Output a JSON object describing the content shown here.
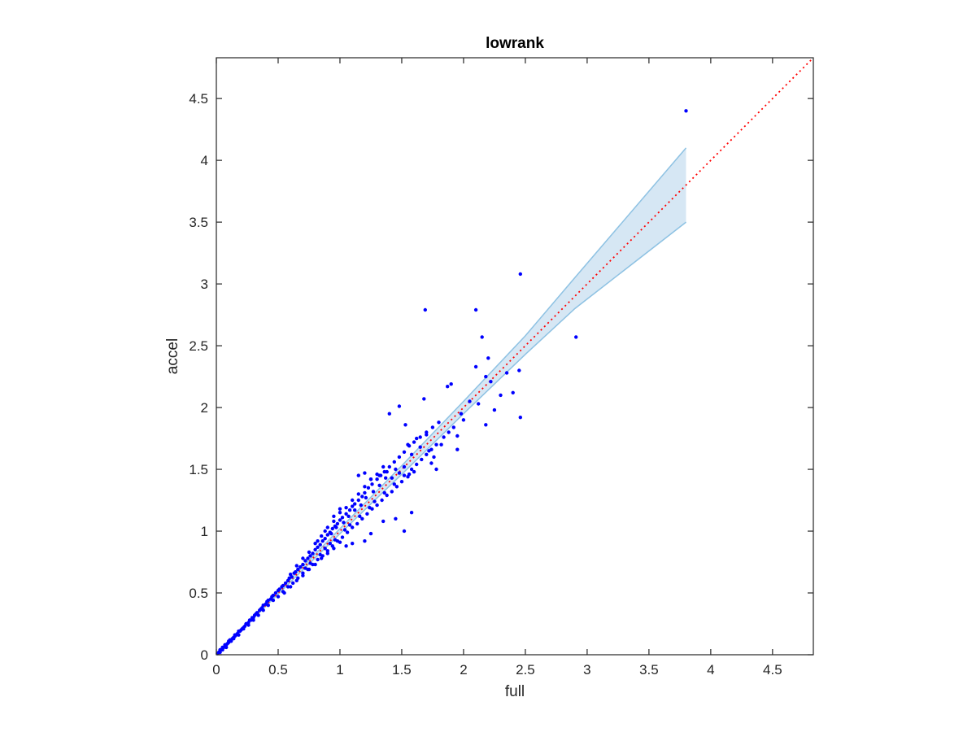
{
  "chart_data": {
    "type": "scatter",
    "title": "lowrank",
    "xlabel": "full",
    "ylabel": "accel",
    "xlim": [
      0,
      4.83
    ],
    "ylim": [
      0,
      4.83
    ],
    "xticks": [
      0,
      0.5,
      1,
      1.5,
      2,
      2.5,
      3,
      3.5,
      4,
      4.5
    ],
    "xtick_labels": [
      "0",
      "0.5",
      "1",
      "1.5",
      "2",
      "2.5",
      "3",
      "3.5",
      "4",
      "4.5"
    ],
    "yticks": [
      0,
      0.5,
      1,
      1.5,
      2,
      2.5,
      3,
      3.5,
      4,
      4.5
    ],
    "ytick_labels": [
      "0",
      "0.5",
      "1",
      "1.5",
      "2",
      "2.5",
      "3",
      "3.5",
      "4",
      "4.5"
    ],
    "grid": false,
    "colors": {
      "points": "#0000ff",
      "reference_line": "#ff0000",
      "band_fill": "#cfe3f2",
      "band_edge": "#8ec2e3",
      "axes": "#262626"
    },
    "reference_line": {
      "x": [
        0,
        4.83
      ],
      "y": [
        0,
        4.83
      ],
      "style": "dotted"
    },
    "confidence_band": {
      "x": [
        0.0,
        0.5,
        1.0,
        1.5,
        2.0,
        2.5,
        2.9,
        3.8
      ],
      "upper": [
        0.01,
        0.51,
        1.02,
        1.53,
        2.05,
        2.58,
        3.05,
        4.1
      ],
      "lower": [
        0.0,
        0.49,
        0.98,
        1.46,
        1.95,
        2.43,
        2.8,
        3.5
      ]
    },
    "points": [
      [
        0.01,
        0.01
      ],
      [
        0.02,
        0.02
      ],
      [
        0.03,
        0.02
      ],
      [
        0.03,
        0.04
      ],
      [
        0.04,
        0.04
      ],
      [
        0.05,
        0.05
      ],
      [
        0.05,
        0.06
      ],
      [
        0.06,
        0.06
      ],
      [
        0.07,
        0.07
      ],
      [
        0.07,
        0.08
      ],
      [
        0.08,
        0.08
      ],
      [
        0.09,
        0.09
      ],
      [
        0.1,
        0.1
      ],
      [
        0.1,
        0.11
      ],
      [
        0.11,
        0.12
      ],
      [
        0.12,
        0.12
      ],
      [
        0.13,
        0.13
      ],
      [
        0.14,
        0.14
      ],
      [
        0.15,
        0.15
      ],
      [
        0.15,
        0.16
      ],
      [
        0.16,
        0.16
      ],
      [
        0.17,
        0.17
      ],
      [
        0.18,
        0.19
      ],
      [
        0.19,
        0.19
      ],
      [
        0.2,
        0.2
      ],
      [
        0.21,
        0.21
      ],
      [
        0.22,
        0.22
      ],
      [
        0.23,
        0.23
      ],
      [
        0.24,
        0.25
      ],
      [
        0.25,
        0.25
      ],
      [
        0.26,
        0.26
      ],
      [
        0.27,
        0.28
      ],
      [
        0.28,
        0.28
      ],
      [
        0.29,
        0.3
      ],
      [
        0.3,
        0.3
      ],
      [
        0.31,
        0.32
      ],
      [
        0.32,
        0.33
      ],
      [
        0.33,
        0.34
      ],
      [
        0.35,
        0.36
      ],
      [
        0.36,
        0.37
      ],
      [
        0.37,
        0.38
      ],
      [
        0.38,
        0.4
      ],
      [
        0.4,
        0.41
      ],
      [
        0.41,
        0.43
      ],
      [
        0.42,
        0.44
      ],
      [
        0.44,
        0.45
      ],
      [
        0.45,
        0.47
      ],
      [
        0.46,
        0.48
      ],
      [
        0.48,
        0.5
      ],
      [
        0.5,
        0.52
      ],
      [
        0.51,
        0.53
      ],
      [
        0.53,
        0.55
      ],
      [
        0.54,
        0.56
      ],
      [
        0.56,
        0.58
      ],
      [
        0.58,
        0.6
      ],
      [
        0.59,
        0.62
      ],
      [
        0.61,
        0.63
      ],
      [
        0.63,
        0.66
      ],
      [
        0.64,
        0.67
      ],
      [
        0.66,
        0.69
      ],
      [
        0.68,
        0.71
      ],
      [
        0.7,
        0.73
      ],
      [
        0.72,
        0.76
      ],
      [
        0.74,
        0.78
      ],
      [
        0.76,
        0.8
      ],
      [
        0.78,
        0.82
      ],
      [
        0.8,
        0.85
      ],
      [
        0.82,
        0.87
      ],
      [
        0.84,
        0.89
      ],
      [
        0.86,
        0.92
      ],
      [
        0.88,
        0.94
      ],
      [
        0.9,
        0.97
      ],
      [
        0.92,
        0.99
      ],
      [
        0.94,
        1.02
      ],
      [
        0.96,
        1.04
      ],
      [
        0.98,
        1.06
      ],
      [
        1.0,
        1.09
      ],
      [
        1.02,
        1.11
      ],
      [
        1.05,
        1.14
      ],
      [
        1.08,
        1.17
      ],
      [
        1.1,
        1.2
      ],
      [
        1.12,
        1.22
      ],
      [
        1.15,
        1.25
      ],
      [
        1.18,
        1.28
      ],
      [
        1.2,
        1.31
      ],
      [
        1.23,
        1.35
      ],
      [
        1.26,
        1.38
      ],
      [
        1.3,
        1.42
      ],
      [
        1.33,
        1.45
      ],
      [
        1.36,
        1.48
      ],
      [
        1.4,
        1.52
      ],
      [
        1.44,
        1.56
      ],
      [
        1.48,
        1.6
      ],
      [
        1.52,
        1.64
      ],
      [
        1.56,
        1.69
      ],
      [
        1.6,
        1.72
      ],
      [
        1.65,
        1.76
      ],
      [
        1.7,
        1.8
      ],
      [
        1.75,
        1.84
      ],
      [
        1.8,
        1.88
      ],
      [
        0.05,
        0.04
      ],
      [
        0.08,
        0.06
      ],
      [
        0.12,
        0.11
      ],
      [
        0.14,
        0.13
      ],
      [
        0.18,
        0.16
      ],
      [
        0.22,
        0.21
      ],
      [
        0.26,
        0.24
      ],
      [
        0.3,
        0.28
      ],
      [
        0.34,
        0.32
      ],
      [
        0.38,
        0.36
      ],
      [
        0.42,
        0.4
      ],
      [
        0.46,
        0.44
      ],
      [
        0.5,
        0.47
      ],
      [
        0.54,
        0.51
      ],
      [
        0.58,
        0.55
      ],
      [
        0.62,
        0.58
      ],
      [
        0.66,
        0.62
      ],
      [
        0.7,
        0.66
      ],
      [
        0.74,
        0.69
      ],
      [
        0.78,
        0.73
      ],
      [
        0.82,
        0.77
      ],
      [
        0.86,
        0.8
      ],
      [
        0.9,
        0.84
      ],
      [
        0.94,
        0.88
      ],
      [
        0.98,
        0.92
      ],
      [
        1.02,
        0.95
      ],
      [
        1.06,
        0.99
      ],
      [
        1.1,
        1.03
      ],
      [
        1.14,
        1.06
      ],
      [
        1.18,
        1.1
      ],
      [
        1.22,
        1.14
      ],
      [
        1.26,
        1.18
      ],
      [
        1.3,
        1.21
      ],
      [
        1.34,
        1.25
      ],
      [
        1.38,
        1.29
      ],
      [
        1.42,
        1.32
      ],
      [
        1.46,
        1.36
      ],
      [
        1.5,
        1.4
      ],
      [
        1.55,
        1.44
      ],
      [
        1.6,
        1.48
      ],
      [
        0.6,
        0.65
      ],
      [
        0.65,
        0.72
      ],
      [
        0.7,
        0.78
      ],
      [
        0.75,
        0.83
      ],
      [
        0.8,
        0.9
      ],
      [
        0.85,
        0.96
      ],
      [
        0.9,
        1.03
      ],
      [
        0.95,
        1.08
      ],
      [
        1.0,
        1.15
      ],
      [
        1.05,
        1.19
      ],
      [
        1.1,
        1.25
      ],
      [
        1.15,
        1.3
      ],
      [
        1.2,
        1.36
      ],
      [
        1.25,
        1.42
      ],
      [
        1.3,
        1.46
      ],
      [
        1.35,
        1.52
      ],
      [
        0.82,
        0.92
      ],
      [
        0.88,
        1.0
      ],
      [
        0.95,
        1.12
      ],
      [
        1.0,
        1.18
      ],
      [
        0.93,
        0.98
      ],
      [
        0.97,
        1.03
      ],
      [
        1.03,
        1.07
      ],
      [
        1.07,
        1.12
      ],
      [
        1.12,
        1.17
      ],
      [
        1.17,
        1.21
      ],
      [
        1.21,
        1.27
      ],
      [
        1.27,
        1.32
      ],
      [
        1.32,
        1.37
      ],
      [
        1.37,
        1.43
      ],
      [
        0.72,
        0.7
      ],
      [
        0.76,
        0.74
      ],
      [
        0.84,
        0.81
      ],
      [
        0.88,
        0.86
      ],
      [
        0.92,
        0.9
      ],
      [
        0.96,
        0.93
      ],
      [
        1.04,
        1.01
      ],
      [
        1.08,
        1.05
      ],
      [
        1.16,
        1.12
      ],
      [
        1.24,
        1.19
      ],
      [
        1.28,
        1.24
      ],
      [
        1.36,
        1.31
      ],
      [
        1.44,
        1.38
      ],
      [
        1.52,
        1.45
      ],
      [
        1.58,
        1.5
      ],
      [
        1.62,
        1.54
      ],
      [
        1.66,
        1.58
      ],
      [
        1.7,
        1.62
      ],
      [
        1.74,
        1.66
      ],
      [
        1.78,
        1.7
      ],
      [
        1.15,
        1.45
      ],
      [
        1.2,
        1.47
      ],
      [
        1.25,
        1.42
      ],
      [
        1.32,
        1.45
      ],
      [
        1.38,
        1.48
      ],
      [
        1.42,
        1.43
      ],
      [
        1.45,
        1.5
      ],
      [
        1.48,
        1.47
      ],
      [
        1.52,
        1.52
      ],
      [
        1.56,
        1.46
      ],
      [
        1.4,
        1.95
      ],
      [
        1.48,
        2.01
      ],
      [
        1.53,
        1.86
      ],
      [
        1.55,
        1.7
      ],
      [
        1.58,
        1.62
      ],
      [
        1.62,
        1.75
      ],
      [
        1.65,
        1.68
      ],
      [
        1.68,
        2.07
      ],
      [
        1.7,
        1.78
      ],
      [
        1.72,
        1.65
      ],
      [
        1.74,
        1.55
      ],
      [
        1.76,
        1.6
      ],
      [
        1.78,
        1.5
      ],
      [
        1.82,
        1.7
      ],
      [
        1.87,
        2.17
      ],
      [
        1.9,
        2.19
      ],
      [
        1.95,
        1.77
      ],
      [
        1.95,
        1.66
      ],
      [
        2.0,
        1.9
      ],
      [
        2.05,
        2.05
      ],
      [
        2.1,
        2.33
      ],
      [
        2.15,
        2.57
      ],
      [
        2.18,
        2.25
      ],
      [
        2.2,
        2.4
      ],
      [
        2.25,
        1.98
      ],
      [
        2.3,
        2.1
      ],
      [
        2.35,
        2.28
      ],
      [
        2.4,
        2.12
      ],
      [
        2.45,
        2.3
      ],
      [
        2.46,
        1.92
      ],
      [
        2.18,
        1.86
      ],
      [
        2.12,
        2.03
      ],
      [
        1.58,
        1.15
      ],
      [
        1.52,
        1.0
      ],
      [
        1.45,
        1.1
      ],
      [
        1.35,
        1.08
      ],
      [
        1.25,
        0.98
      ],
      [
        1.2,
        0.92
      ],
      [
        1.1,
        0.9
      ],
      [
        1.05,
        0.88
      ],
      [
        1.69,
        2.79
      ],
      [
        2.1,
        2.79
      ],
      [
        2.46,
        3.08
      ],
      [
        2.91,
        2.57
      ],
      [
        3.8,
        4.4
      ],
      [
        2.22,
        2.21
      ],
      [
        1.98,
        1.95
      ],
      [
        1.92,
        1.84
      ],
      [
        1.88,
        1.8
      ],
      [
        1.84,
        1.76
      ],
      [
        0.55,
        0.5
      ],
      [
        0.6,
        0.55
      ],
      [
        0.65,
        0.6
      ],
      [
        0.7,
        0.64
      ],
      [
        0.75,
        0.69
      ],
      [
        0.8,
        0.73
      ],
      [
        0.85,
        0.78
      ],
      [
        0.9,
        0.82
      ],
      [
        0.95,
        0.86
      ],
      [
        1.0,
        0.91
      ]
    ]
  }
}
